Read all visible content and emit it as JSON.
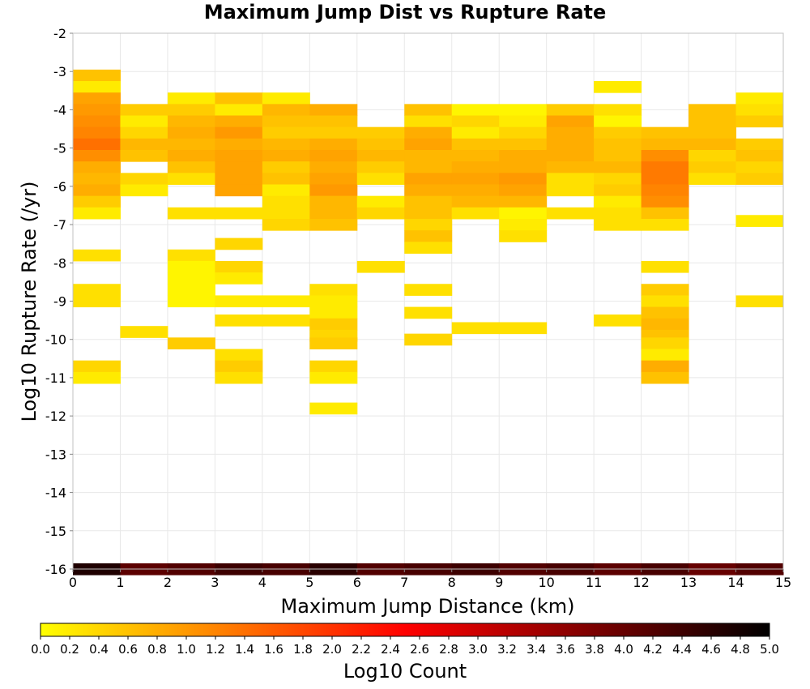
{
  "chart_data": {
    "type": "heatmap",
    "title": "Maximum Jump Dist vs Rupture Rate",
    "xlabel": "Maximum Jump Distance (km)",
    "ylabel": "Log10 Rupture Rate (/yr)",
    "xlim": [
      0,
      15
    ],
    "ylim": [
      -16,
      -2
    ],
    "x_ticks": [
      0,
      1,
      2,
      3,
      4,
      5,
      6,
      7,
      8,
      9,
      10,
      11,
      12,
      13,
      14,
      15
    ],
    "y_ticks": [
      -2,
      -3,
      -4,
      -5,
      -6,
      -7,
      -8,
      -9,
      -10,
      -11,
      -12,
      -13,
      -14,
      -15,
      -16
    ],
    "bin_width_x": 1,
    "bin_height_y": 0.3,
    "grid": true,
    "colorscale": {
      "label": "Log10 Count",
      "range": [
        0.0,
        5.0
      ],
      "ticks": [
        "0.0",
        "0.2",
        "0.4",
        "0.6",
        "0.8",
        "1.0",
        "1.2",
        "1.4",
        "1.6",
        "1.8",
        "2.0",
        "2.2",
        "2.4",
        "2.6",
        "2.8",
        "3.0",
        "3.2",
        "3.4",
        "3.6",
        "3.8",
        "4.0",
        "4.2",
        "4.4",
        "4.6",
        "4.8",
        "5.0"
      ],
      "stops": [
        "#ffff00",
        "#ff7f00",
        "#ff0000",
        "#800000",
        "#000000"
      ]
    },
    "cells": [
      {
        "x": 0,
        "y": -3.1,
        "v": 0.6
      },
      {
        "x": 0,
        "y": -3.4,
        "v": 0.2
      },
      {
        "x": 0,
        "y": -3.7,
        "v": 0.9
      },
      {
        "x": 0,
        "y": -4.0,
        "v": 1.0
      },
      {
        "x": 0,
        "y": -4.3,
        "v": 1.1
      },
      {
        "x": 0,
        "y": -4.6,
        "v": 1.2
      },
      {
        "x": 0,
        "y": -4.9,
        "v": 1.4
      },
      {
        "x": 0,
        "y": -5.2,
        "v": 1.1
      },
      {
        "x": 0,
        "y": -5.5,
        "v": 0.8
      },
      {
        "x": 0,
        "y": -5.8,
        "v": 0.7
      },
      {
        "x": 0,
        "y": -6.1,
        "v": 0.8
      },
      {
        "x": 0,
        "y": -6.4,
        "v": 0.5
      },
      {
        "x": 0,
        "y": -6.7,
        "v": 0.2
      },
      {
        "x": 0,
        "y": -7.8,
        "v": 0.3
      },
      {
        "x": 0,
        "y": -8.7,
        "v": 0.3
      },
      {
        "x": 0,
        "y": -9.0,
        "v": 0.3
      },
      {
        "x": 0,
        "y": -10.7,
        "v": 0.4
      },
      {
        "x": 0,
        "y": -11.0,
        "v": 0.2
      },
      {
        "x": 1,
        "y": -4.0,
        "v": 0.5
      },
      {
        "x": 1,
        "y": -4.3,
        "v": 0.2
      },
      {
        "x": 1,
        "y": -4.6,
        "v": 0.4
      },
      {
        "x": 1,
        "y": -4.9,
        "v": 0.7
      },
      {
        "x": 1,
        "y": -5.2,
        "v": 0.6
      },
      {
        "x": 1,
        "y": -5.8,
        "v": 0.4
      },
      {
        "x": 1,
        "y": -6.1,
        "v": 0.2
      },
      {
        "x": 1,
        "y": -9.8,
        "v": 0.3
      },
      {
        "x": 2,
        "y": -3.7,
        "v": 0.2
      },
      {
        "x": 2,
        "y": -4.0,
        "v": 0.5
      },
      {
        "x": 2,
        "y": -4.3,
        "v": 0.7
      },
      {
        "x": 2,
        "y": -4.6,
        "v": 0.8
      },
      {
        "x": 2,
        "y": -4.9,
        "v": 0.7
      },
      {
        "x": 2,
        "y": -5.2,
        "v": 0.8
      },
      {
        "x": 2,
        "y": -5.5,
        "v": 0.6
      },
      {
        "x": 2,
        "y": -5.8,
        "v": 0.3
      },
      {
        "x": 2,
        "y": -6.7,
        "v": 0.3
      },
      {
        "x": 2,
        "y": -7.8,
        "v": 0.3
      },
      {
        "x": 2,
        "y": -8.1,
        "v": 0.1
      },
      {
        "x": 2,
        "y": -8.4,
        "v": 0.1
      },
      {
        "x": 2,
        "y": -8.7,
        "v": 0.1
      },
      {
        "x": 2,
        "y": -9.0,
        "v": 0.1
      },
      {
        "x": 2,
        "y": -10.1,
        "v": 0.5
      },
      {
        "x": 3,
        "y": -3.7,
        "v": 0.6
      },
      {
        "x": 3,
        "y": -4.0,
        "v": 0.2
      },
      {
        "x": 3,
        "y": -4.3,
        "v": 0.8
      },
      {
        "x": 3,
        "y": -4.6,
        "v": 1.0
      },
      {
        "x": 3,
        "y": -4.9,
        "v": 0.8
      },
      {
        "x": 3,
        "y": -5.2,
        "v": 0.9
      },
      {
        "x": 3,
        "y": -5.5,
        "v": 0.9
      },
      {
        "x": 3,
        "y": -5.8,
        "v": 0.9
      },
      {
        "x": 3,
        "y": -6.1,
        "v": 0.9
      },
      {
        "x": 3,
        "y": -6.7,
        "v": 0.3
      },
      {
        "x": 3,
        "y": -7.5,
        "v": 0.4
      },
      {
        "x": 3,
        "y": -8.1,
        "v": 0.4
      },
      {
        "x": 3,
        "y": -8.4,
        "v": 0.2
      },
      {
        "x": 3,
        "y": -9.0,
        "v": 0.2
      },
      {
        "x": 3,
        "y": -9.5,
        "v": 0.3
      },
      {
        "x": 3,
        "y": -10.4,
        "v": 0.3
      },
      {
        "x": 3,
        "y": -10.7,
        "v": 0.5
      },
      {
        "x": 3,
        "y": -11.0,
        "v": 0.3
      },
      {
        "x": 4,
        "y": -3.7,
        "v": 0.2
      },
      {
        "x": 4,
        "y": -4.0,
        "v": 0.7
      },
      {
        "x": 4,
        "y": -4.3,
        "v": 0.6
      },
      {
        "x": 4,
        "y": -4.6,
        "v": 0.5
      },
      {
        "x": 4,
        "y": -4.9,
        "v": 0.7
      },
      {
        "x": 4,
        "y": -5.2,
        "v": 0.8
      },
      {
        "x": 4,
        "y": -5.5,
        "v": 0.5
      },
      {
        "x": 4,
        "y": -5.8,
        "v": 0.6
      },
      {
        "x": 4,
        "y": -6.1,
        "v": 0.2
      },
      {
        "x": 4,
        "y": -6.4,
        "v": 0.3
      },
      {
        "x": 4,
        "y": -6.7,
        "v": 0.3
      },
      {
        "x": 4,
        "y": -7.0,
        "v": 0.4
      },
      {
        "x": 4,
        "y": -9.0,
        "v": 0.2
      },
      {
        "x": 4,
        "y": -9.5,
        "v": 0.3
      },
      {
        "x": 5,
        "y": -4.0,
        "v": 0.8
      },
      {
        "x": 5,
        "y": -4.3,
        "v": 0.6
      },
      {
        "x": 5,
        "y": -4.6,
        "v": 0.5
      },
      {
        "x": 5,
        "y": -4.9,
        "v": 0.8
      },
      {
        "x": 5,
        "y": -5.2,
        "v": 0.9
      },
      {
        "x": 5,
        "y": -5.5,
        "v": 0.8
      },
      {
        "x": 5,
        "y": -5.8,
        "v": 0.9
      },
      {
        "x": 5,
        "y": -6.1,
        "v": 1.0
      },
      {
        "x": 5,
        "y": -6.4,
        "v": 0.7
      },
      {
        "x": 5,
        "y": -6.7,
        "v": 0.7
      },
      {
        "x": 5,
        "y": -7.0,
        "v": 0.6
      },
      {
        "x": 5,
        "y": -8.7,
        "v": 0.3
      },
      {
        "x": 5,
        "y": -9.0,
        "v": 0.2
      },
      {
        "x": 5,
        "y": -9.3,
        "v": 0.2
      },
      {
        "x": 5,
        "y": -9.6,
        "v": 0.5
      },
      {
        "x": 5,
        "y": -9.9,
        "v": 0.4
      },
      {
        "x": 5,
        "y": -10.1,
        "v": 0.5
      },
      {
        "x": 5,
        "y": -10.7,
        "v": 0.4
      },
      {
        "x": 5,
        "y": -11.0,
        "v": 0.2
      },
      {
        "x": 5,
        "y": -11.8,
        "v": 0.2
      },
      {
        "x": 6,
        "y": -4.6,
        "v": 0.5
      },
      {
        "x": 6,
        "y": -4.9,
        "v": 0.6
      },
      {
        "x": 6,
        "y": -5.2,
        "v": 0.7
      },
      {
        "x": 6,
        "y": -5.5,
        "v": 0.5
      },
      {
        "x": 6,
        "y": -5.8,
        "v": 0.3
      },
      {
        "x": 6,
        "y": -6.4,
        "v": 0.2
      },
      {
        "x": 6,
        "y": -6.7,
        "v": 0.4
      },
      {
        "x": 6,
        "y": -8.1,
        "v": 0.3
      },
      {
        "x": 7,
        "y": -4.0,
        "v": 0.6
      },
      {
        "x": 7,
        "y": -4.3,
        "v": 0.3
      },
      {
        "x": 7,
        "y": -4.6,
        "v": 0.8
      },
      {
        "x": 7,
        "y": -4.9,
        "v": 0.9
      },
      {
        "x": 7,
        "y": -5.2,
        "v": 0.7
      },
      {
        "x": 7,
        "y": -5.5,
        "v": 0.7
      },
      {
        "x": 7,
        "y": -5.8,
        "v": 0.9
      },
      {
        "x": 7,
        "y": -6.1,
        "v": 0.8
      },
      {
        "x": 7,
        "y": -6.4,
        "v": 0.6
      },
      {
        "x": 7,
        "y": -6.7,
        "v": 0.6
      },
      {
        "x": 7,
        "y": -7.0,
        "v": 0.4
      },
      {
        "x": 7,
        "y": -7.3,
        "v": 0.6
      },
      {
        "x": 7,
        "y": -7.6,
        "v": 0.3
      },
      {
        "x": 7,
        "y": -8.7,
        "v": 0.3
      },
      {
        "x": 7,
        "y": -9.3,
        "v": 0.3
      },
      {
        "x": 7,
        "y": -10.0,
        "v": 0.4
      },
      {
        "x": 8,
        "y": -4.0,
        "v": 0.1
      },
      {
        "x": 8,
        "y": -4.3,
        "v": 0.4
      },
      {
        "x": 8,
        "y": -4.6,
        "v": 0.2
      },
      {
        "x": 8,
        "y": -4.9,
        "v": 0.6
      },
      {
        "x": 8,
        "y": -5.2,
        "v": 0.7
      },
      {
        "x": 8,
        "y": -5.5,
        "v": 0.8
      },
      {
        "x": 8,
        "y": -5.8,
        "v": 0.9
      },
      {
        "x": 8,
        "y": -6.1,
        "v": 0.8
      },
      {
        "x": 8,
        "y": -6.4,
        "v": 0.7
      },
      {
        "x": 8,
        "y": -6.7,
        "v": 0.3
      },
      {
        "x": 8,
        "y": -9.7,
        "v": 0.3
      },
      {
        "x": 9,
        "y": -4.0,
        "v": 0.1
      },
      {
        "x": 9,
        "y": -4.3,
        "v": 0.2
      },
      {
        "x": 9,
        "y": -4.6,
        "v": 0.4
      },
      {
        "x": 9,
        "y": -4.9,
        "v": 0.6
      },
      {
        "x": 9,
        "y": -5.2,
        "v": 0.8
      },
      {
        "x": 9,
        "y": -5.5,
        "v": 0.8
      },
      {
        "x": 9,
        "y": -5.8,
        "v": 1.0
      },
      {
        "x": 9,
        "y": -6.1,
        "v": 0.9
      },
      {
        "x": 9,
        "y": -6.4,
        "v": 0.7
      },
      {
        "x": 9,
        "y": -6.7,
        "v": 0.1
      },
      {
        "x": 9,
        "y": -7.0,
        "v": 0.2
      },
      {
        "x": 9,
        "y": -7.3,
        "v": 0.3
      },
      {
        "x": 9,
        "y": -9.7,
        "v": 0.3
      },
      {
        "x": 10,
        "y": -4.0,
        "v": 0.5
      },
      {
        "x": 10,
        "y": -4.3,
        "v": 0.9
      },
      {
        "x": 10,
        "y": -4.6,
        "v": 0.8
      },
      {
        "x": 10,
        "y": -4.9,
        "v": 0.8
      },
      {
        "x": 10,
        "y": -5.2,
        "v": 0.8
      },
      {
        "x": 10,
        "y": -5.5,
        "v": 0.7
      },
      {
        "x": 10,
        "y": -5.8,
        "v": 0.3
      },
      {
        "x": 10,
        "y": -6.1,
        "v": 0.3
      },
      {
        "x": 10,
        "y": -6.7,
        "v": 0.3
      },
      {
        "x": 11,
        "y": -3.4,
        "v": 0.2
      },
      {
        "x": 11,
        "y": -4.0,
        "v": 0.3
      },
      {
        "x": 11,
        "y": -4.3,
        "v": 0.1
      },
      {
        "x": 11,
        "y": -4.6,
        "v": 0.5
      },
      {
        "x": 11,
        "y": -4.9,
        "v": 0.6
      },
      {
        "x": 11,
        "y": -5.2,
        "v": 0.6
      },
      {
        "x": 11,
        "y": -5.5,
        "v": 0.7
      },
      {
        "x": 11,
        "y": -5.8,
        "v": 0.4
      },
      {
        "x": 11,
        "y": -6.1,
        "v": 0.5
      },
      {
        "x": 11,
        "y": -6.4,
        "v": 0.2
      },
      {
        "x": 11,
        "y": -6.7,
        "v": 0.3
      },
      {
        "x": 11,
        "y": -7.0,
        "v": 0.3
      },
      {
        "x": 11,
        "y": -9.5,
        "v": 0.3
      },
      {
        "x": 12,
        "y": -4.6,
        "v": 0.6
      },
      {
        "x": 12,
        "y": -4.9,
        "v": 0.7
      },
      {
        "x": 12,
        "y": -5.2,
        "v": 1.1
      },
      {
        "x": 12,
        "y": -5.5,
        "v": 1.3
      },
      {
        "x": 12,
        "y": -5.8,
        "v": 1.3
      },
      {
        "x": 12,
        "y": -6.1,
        "v": 1.2
      },
      {
        "x": 12,
        "y": -6.4,
        "v": 1.1
      },
      {
        "x": 12,
        "y": -6.7,
        "v": 0.6
      },
      {
        "x": 12,
        "y": -7.0,
        "v": 0.3
      },
      {
        "x": 12,
        "y": -8.1,
        "v": 0.3
      },
      {
        "x": 12,
        "y": -8.7,
        "v": 0.5
      },
      {
        "x": 12,
        "y": -9.0,
        "v": 0.3
      },
      {
        "x": 12,
        "y": -9.3,
        "v": 0.6
      },
      {
        "x": 12,
        "y": -9.6,
        "v": 0.7
      },
      {
        "x": 12,
        "y": -9.9,
        "v": 0.6
      },
      {
        "x": 12,
        "y": -10.1,
        "v": 0.4
      },
      {
        "x": 12,
        "y": -10.4,
        "v": 0.2
      },
      {
        "x": 12,
        "y": -10.7,
        "v": 0.8
      },
      {
        "x": 12,
        "y": -11.0,
        "v": 0.6
      },
      {
        "x": 13,
        "y": -4.0,
        "v": 0.6
      },
      {
        "x": 13,
        "y": -4.3,
        "v": 0.6
      },
      {
        "x": 13,
        "y": -4.6,
        "v": 0.6
      },
      {
        "x": 13,
        "y": -4.9,
        "v": 0.7
      },
      {
        "x": 13,
        "y": -5.2,
        "v": 0.4
      },
      {
        "x": 13,
        "y": -5.5,
        "v": 0.5
      },
      {
        "x": 13,
        "y": -5.8,
        "v": 0.3
      },
      {
        "x": 14,
        "y": -3.7,
        "v": 0.2
      },
      {
        "x": 14,
        "y": -4.0,
        "v": 0.3
      },
      {
        "x": 14,
        "y": -4.3,
        "v": 0.5
      },
      {
        "x": 14,
        "y": -4.9,
        "v": 0.5
      },
      {
        "x": 14,
        "y": -5.2,
        "v": 0.6
      },
      {
        "x": 14,
        "y": -5.5,
        "v": 0.4
      },
      {
        "x": 14,
        "y": -5.8,
        "v": 0.5
      },
      {
        "x": 14,
        "y": -6.9,
        "v": 0.2
      },
      {
        "x": 14,
        "y": -9.0,
        "v": 0.3
      },
      {
        "x": 0,
        "y": -16.0,
        "v": 4.7
      },
      {
        "x": 1,
        "y": -16.0,
        "v": 4.1
      },
      {
        "x": 2,
        "y": -16.0,
        "v": 4.2
      },
      {
        "x": 3,
        "y": -16.0,
        "v": 4.4
      },
      {
        "x": 4,
        "y": -16.0,
        "v": 4.3
      },
      {
        "x": 5,
        "y": -16.0,
        "v": 4.6
      },
      {
        "x": 6,
        "y": -16.0,
        "v": 4.2
      },
      {
        "x": 7,
        "y": -16.0,
        "v": 4.3
      },
      {
        "x": 8,
        "y": -16.0,
        "v": 4.4
      },
      {
        "x": 9,
        "y": -16.0,
        "v": 4.2
      },
      {
        "x": 10,
        "y": -16.0,
        "v": 4.3
      },
      {
        "x": 11,
        "y": -16.0,
        "v": 4.1
      },
      {
        "x": 12,
        "y": -16.0,
        "v": 4.3
      },
      {
        "x": 13,
        "y": -16.0,
        "v": 4.0
      },
      {
        "x": 14,
        "y": -16.0,
        "v": 4.2
      }
    ]
  }
}
